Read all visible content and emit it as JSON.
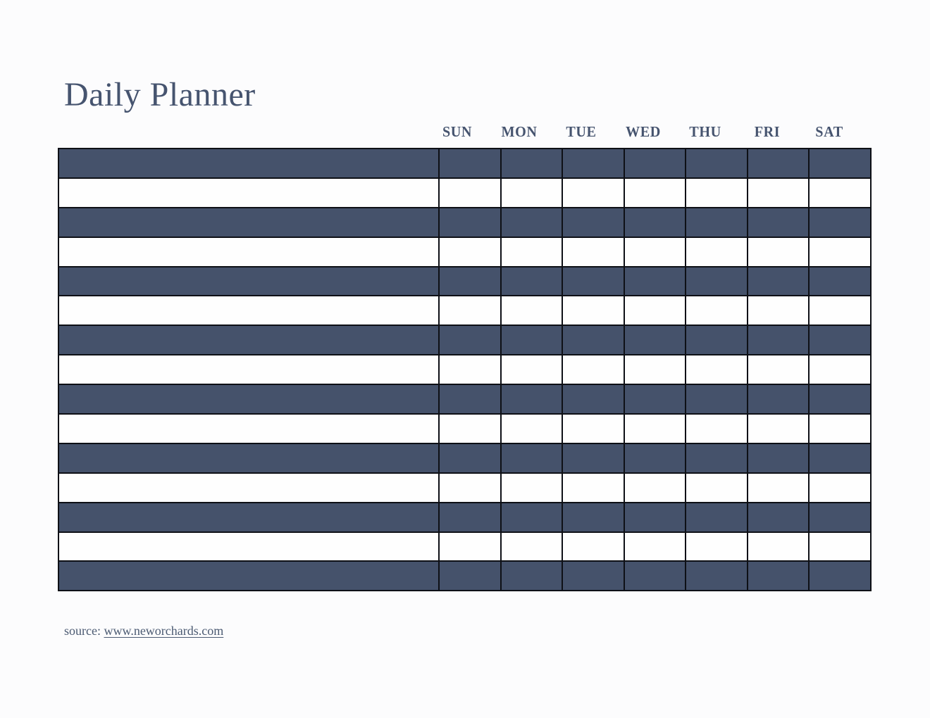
{
  "page": {
    "title": "Daily Planner"
  },
  "header": {
    "days": [
      "SUN",
      "MON",
      "TUE",
      "WED",
      "THU",
      "FRI",
      "SAT"
    ]
  },
  "planner_table": {
    "row_count": 15,
    "column_count": 8,
    "first_row_style": "dark",
    "cells_empty": true
  },
  "footer": {
    "source_label": "source: ",
    "source_url": "www.neworchards.com"
  },
  "colors": {
    "bg": "#fcfcfd",
    "row_dark": "#45526b",
    "row_light": "#fefefe",
    "line": "#0e1016",
    "ink": "#46546f",
    "ink_soft": "#4b5a72"
  }
}
